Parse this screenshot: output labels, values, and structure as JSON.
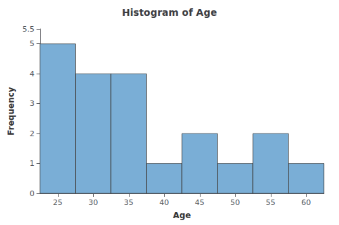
{
  "chart_data": {
    "type": "histogram",
    "title": "Histogram of Age",
    "xlabel": "Age",
    "ylabel": "Frequency",
    "bins": [
      22.5,
      27.5,
      32.5,
      37.5,
      42.5,
      47.5,
      52.5,
      57.5,
      62.5
    ],
    "values": [
      5,
      4,
      4,
      1,
      2,
      1,
      2,
      1
    ],
    "color": "#7aaed6",
    "xlim": [
      22.5,
      62.5
    ],
    "xticks": [
      25,
      30,
      35,
      40,
      45,
      50,
      55,
      60
    ],
    "ylim": [
      0,
      5.5
    ],
    "yticks": [
      0,
      1,
      2,
      3,
      4,
      5
    ],
    "grid": false
  }
}
